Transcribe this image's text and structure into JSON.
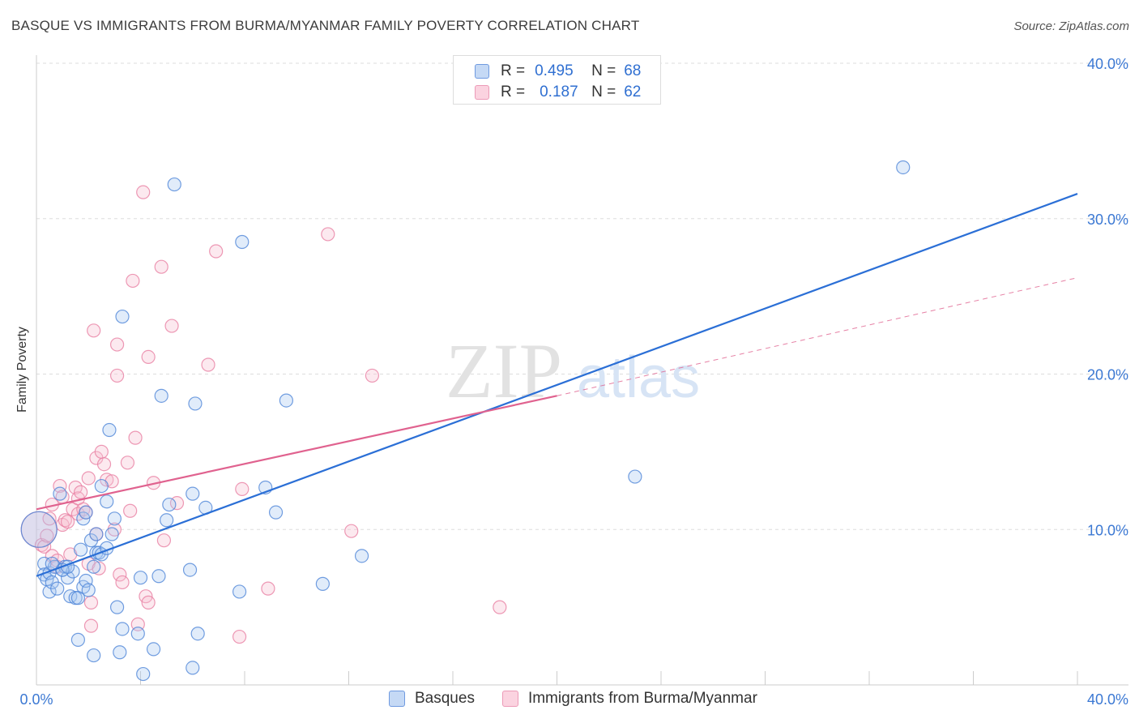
{
  "title": "BASQUE VS IMMIGRANTS FROM BURMA/MYANMAR FAMILY POVERTY CORRELATION CHART",
  "source": "Source: ZipAtlas.com",
  "watermark": {
    "zip": "ZIP",
    "atlas": "atlas"
  },
  "legend": {
    "rows": [
      {
        "r_label": "R =",
        "r_value": "0.495",
        "n_label": "N =",
        "n_value": "68"
      },
      {
        "r_label": "R =",
        "r_value": "0.187",
        "n_label": "N =",
        "n_value": "62"
      }
    ]
  },
  "colors": {
    "blue_fill": "#a9c8f0",
    "blue_stroke": "#4f86d8",
    "blue_line": "#2b6fd6",
    "pink_fill": "#f6c0d2",
    "pink_stroke": "#e87fa3",
    "pink_line": "#e0628f",
    "grid": "#dddddd",
    "axis_text": "#3b78d3"
  },
  "chart_data": {
    "type": "scatter",
    "title": "BASQUE VS IMMIGRANTS FROM BURMA/MYANMAR FAMILY POVERTY CORRELATION CHART",
    "xlabel": "",
    "ylabel": "Family Poverty",
    "xlim": [
      0,
      40
    ],
    "ylim": [
      0,
      40
    ],
    "x_tick_labels": [
      "0.0%",
      "40.0%"
    ],
    "y_ticks": [
      10,
      20,
      30,
      40
    ],
    "y_tick_labels": [
      "10.0%",
      "20.0%",
      "30.0%",
      "40.0%"
    ],
    "legend_position": "top-center",
    "series": [
      {
        "name": "Basques",
        "r": 0.495,
        "n": 68,
        "trend": {
          "x": [
            0,
            40
          ],
          "y": [
            7.0,
            31.6
          ],
          "style": "solid"
        },
        "points": [
          {
            "x": 0.1,
            "y": 10.0,
            "s": 22
          },
          {
            "x": 0.3,
            "y": 7.8
          },
          {
            "x": 0.3,
            "y": 7.1
          },
          {
            "x": 0.4,
            "y": 6.8
          },
          {
            "x": 0.5,
            "y": 7.2
          },
          {
            "x": 0.5,
            "y": 6.0
          },
          {
            "x": 0.6,
            "y": 6.6
          },
          {
            "x": 0.7,
            "y": 7.6
          },
          {
            "x": 0.8,
            "y": 6.2
          },
          {
            "x": 0.9,
            "y": 12.3
          },
          {
            "x": 1.0,
            "y": 7.4
          },
          {
            "x": 1.1,
            "y": 7.6
          },
          {
            "x": 1.2,
            "y": 6.9
          },
          {
            "x": 1.3,
            "y": 5.7
          },
          {
            "x": 1.4,
            "y": 7.3
          },
          {
            "x": 1.5,
            "y": 5.6
          },
          {
            "x": 1.6,
            "y": 5.6
          },
          {
            "x": 1.6,
            "y": 2.9
          },
          {
            "x": 1.7,
            "y": 8.7
          },
          {
            "x": 1.8,
            "y": 10.7
          },
          {
            "x": 1.8,
            "y": 6.3
          },
          {
            "x": 1.9,
            "y": 11.1
          },
          {
            "x": 1.9,
            "y": 6.7
          },
          {
            "x": 2.0,
            "y": 6.1
          },
          {
            "x": 2.1,
            "y": 9.3
          },
          {
            "x": 2.2,
            "y": 7.6
          },
          {
            "x": 2.2,
            "y": 1.9
          },
          {
            "x": 2.3,
            "y": 9.7
          },
          {
            "x": 2.3,
            "y": 8.5
          },
          {
            "x": 2.4,
            "y": 8.5
          },
          {
            "x": 2.5,
            "y": 12.8
          },
          {
            "x": 2.5,
            "y": 8.4
          },
          {
            "x": 2.7,
            "y": 11.8
          },
          {
            "x": 2.7,
            "y": 8.8
          },
          {
            "x": 2.8,
            "y": 16.4
          },
          {
            "x": 2.9,
            "y": 9.7
          },
          {
            "x": 3.0,
            "y": 10.7
          },
          {
            "x": 3.1,
            "y": 5.0
          },
          {
            "x": 3.2,
            "y": 2.1
          },
          {
            "x": 3.3,
            "y": 23.7
          },
          {
            "x": 3.3,
            "y": 3.6
          },
          {
            "x": 3.9,
            "y": 3.3
          },
          {
            "x": 4.0,
            "y": 6.9
          },
          {
            "x": 4.1,
            "y": 0.7
          },
          {
            "x": 4.5,
            "y": 2.3
          },
          {
            "x": 4.7,
            "y": 7.0
          },
          {
            "x": 4.8,
            "y": 18.6
          },
          {
            "x": 5.0,
            "y": 10.6
          },
          {
            "x": 5.1,
            "y": 11.6
          },
          {
            "x": 5.3,
            "y": 32.2
          },
          {
            "x": 5.9,
            "y": 7.4
          },
          {
            "x": 6.0,
            "y": 12.3
          },
          {
            "x": 6.0,
            "y": 1.1
          },
          {
            "x": 6.1,
            "y": 18.1
          },
          {
            "x": 6.2,
            "y": 3.3
          },
          {
            "x": 6.5,
            "y": 11.4
          },
          {
            "x": 7.8,
            "y": 6.0
          },
          {
            "x": 7.9,
            "y": 28.5
          },
          {
            "x": 8.8,
            "y": 12.7
          },
          {
            "x": 9.2,
            "y": 11.1
          },
          {
            "x": 9.6,
            "y": 18.3
          },
          {
            "x": 11.0,
            "y": 6.5
          },
          {
            "x": 12.5,
            "y": 8.3
          },
          {
            "x": 23.0,
            "y": 13.4
          },
          {
            "x": 33.3,
            "y": 33.3
          },
          {
            "x": 1.0,
            "y": 7.4
          },
          {
            "x": 1.2,
            "y": 7.6
          },
          {
            "x": 0.6,
            "y": 7.8
          }
        ]
      },
      {
        "name": "Immigrants from Burma/Myanmar",
        "r": 0.187,
        "n": 62,
        "trend": {
          "x": [
            0,
            20
          ],
          "y": [
            11.3,
            18.6
          ],
          "style": "solid"
        },
        "trend_extension": {
          "x": [
            20,
            40
          ],
          "y": [
            18.6,
            26.2
          ],
          "style": "dashed"
        },
        "points": [
          {
            "x": 0.1,
            "y": 10.0,
            "s": 22
          },
          {
            "x": 0.2,
            "y": 9.0
          },
          {
            "x": 0.3,
            "y": 8.9
          },
          {
            "x": 0.4,
            "y": 9.6
          },
          {
            "x": 0.5,
            "y": 10.7
          },
          {
            "x": 0.6,
            "y": 8.3
          },
          {
            "x": 0.6,
            "y": 11.6
          },
          {
            "x": 0.8,
            "y": 7.6
          },
          {
            "x": 0.8,
            "y": 8.0
          },
          {
            "x": 0.9,
            "y": 12.8
          },
          {
            "x": 1.0,
            "y": 10.3
          },
          {
            "x": 1.0,
            "y": 12.1
          },
          {
            "x": 1.1,
            "y": 10.6
          },
          {
            "x": 1.2,
            "y": 10.5
          },
          {
            "x": 1.3,
            "y": 8.4
          },
          {
            "x": 1.4,
            "y": 11.3
          },
          {
            "x": 1.5,
            "y": 12.7
          },
          {
            "x": 1.6,
            "y": 11.0
          },
          {
            "x": 1.6,
            "y": 12.0
          },
          {
            "x": 1.7,
            "y": 12.4
          },
          {
            "x": 1.8,
            "y": 11.3
          },
          {
            "x": 1.9,
            "y": 11.1
          },
          {
            "x": 2.0,
            "y": 7.8
          },
          {
            "x": 2.0,
            "y": 13.3
          },
          {
            "x": 2.1,
            "y": 3.8
          },
          {
            "x": 2.1,
            "y": 5.3
          },
          {
            "x": 2.2,
            "y": 22.8
          },
          {
            "x": 2.3,
            "y": 9.7
          },
          {
            "x": 2.3,
            "y": 14.6
          },
          {
            "x": 2.4,
            "y": 7.5
          },
          {
            "x": 2.5,
            "y": 15.0
          },
          {
            "x": 2.6,
            "y": 14.2
          },
          {
            "x": 2.7,
            "y": 13.2
          },
          {
            "x": 2.9,
            "y": 13.1
          },
          {
            "x": 3.0,
            "y": 10.0
          },
          {
            "x": 3.1,
            "y": 21.9
          },
          {
            "x": 3.1,
            "y": 19.9
          },
          {
            "x": 3.2,
            "y": 7.1
          },
          {
            "x": 3.3,
            "y": 6.6
          },
          {
            "x": 3.5,
            "y": 14.3
          },
          {
            "x": 3.6,
            "y": 11.2
          },
          {
            "x": 3.7,
            "y": 26.0
          },
          {
            "x": 3.8,
            "y": 15.9
          },
          {
            "x": 3.9,
            "y": 3.9
          },
          {
            "x": 4.1,
            "y": 31.7
          },
          {
            "x": 4.2,
            "y": 5.7
          },
          {
            "x": 4.3,
            "y": 21.1
          },
          {
            "x": 4.3,
            "y": 5.3
          },
          {
            "x": 4.5,
            "y": 13.0
          },
          {
            "x": 4.8,
            "y": 26.9
          },
          {
            "x": 4.9,
            "y": 9.3
          },
          {
            "x": 5.2,
            "y": 23.1
          },
          {
            "x": 5.4,
            "y": 11.7
          },
          {
            "x": 6.6,
            "y": 20.6
          },
          {
            "x": 6.9,
            "y": 27.9
          },
          {
            "x": 7.8,
            "y": 3.1
          },
          {
            "x": 7.9,
            "y": 12.6
          },
          {
            "x": 8.9,
            "y": 6.2
          },
          {
            "x": 11.2,
            "y": 29.0
          },
          {
            "x": 12.1,
            "y": 9.9
          },
          {
            "x": 12.9,
            "y": 19.9
          },
          {
            "x": 17.8,
            "y": 5.0
          }
        ]
      }
    ]
  }
}
